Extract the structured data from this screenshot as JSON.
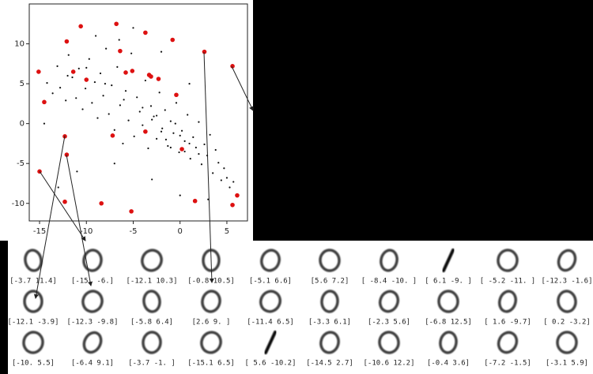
{
  "chart_data": {
    "type": "scatter",
    "xlim": [
      -16.1,
      7.2
    ],
    "ylim": [
      -12.2,
      15.0
    ],
    "xticks": [
      -15,
      -10,
      -5,
      0,
      5
    ],
    "yticks": [
      -10,
      -5,
      0,
      5,
      10
    ],
    "series": [
      {
        "color": "#111111",
        "x": [
          -14.2,
          -13.6,
          -13.1,
          -12.8,
          -12.2,
          -11.9,
          -11.5,
          -11.1,
          -10.8,
          -10.4,
          -10.1,
          -9.7,
          -9.4,
          -9.1,
          -8.8,
          -8.5,
          -8.2,
          -7.9,
          -7.6,
          -7.3,
          -7.0,
          -6.7,
          -6.4,
          -6.1,
          -5.8,
          -5.5,
          -5.2,
          -4.9,
          -4.6,
          -4.3,
          -4.0,
          -3.7,
          -3.4,
          -3.1,
          -2.8,
          -2.5,
          -2.2,
          -1.9,
          -1.6,
          -1.3,
          -1.0,
          -0.7,
          -0.4,
          -0.1,
          0.2,
          0.5,
          0.8,
          1.1,
          1.4,
          1.7,
          2.0,
          2.3,
          2.6,
          2.9,
          3.2,
          3.5,
          3.8,
          4.1,
          4.4,
          4.7,
          5.0,
          5.3,
          5.7,
          -2,
          -1.5,
          -0.5,
          0,
          -3,
          -1,
          1,
          -2.5,
          -4,
          0.5,
          2,
          -6,
          -8,
          -10,
          -12,
          -6.5,
          -9,
          -11,
          -13,
          -7,
          -3,
          0,
          3,
          -14.5,
          -5,
          -2,
          1
        ],
        "values": [
          5.1,
          3.8,
          7.2,
          4.5,
          2.9,
          8.6,
          5.8,
          3.2,
          6.9,
          1.8,
          4.4,
          8.1,
          2.6,
          5.2,
          0.7,
          6.3,
          3.5,
          9.4,
          1.2,
          4.8,
          -0.8,
          7.1,
          2.3,
          -2.5,
          4.1,
          0.4,
          8.8,
          -1.6,
          3.3,
          1.5,
          -0.2,
          5.4,
          -3.1,
          2.2,
          0.9,
          -1.9,
          3.9,
          -0.6,
          1.7,
          -2.8,
          0.3,
          -1.2,
          2.6,
          -3.6,
          -0.9,
          -2.2,
          1.1,
          -4.4,
          -1.7,
          -3.0,
          0.2,
          -5.1,
          -2.6,
          -4.0,
          -1.4,
          -6.2,
          -3.3,
          -4.9,
          -7.1,
          -5.6,
          -6.8,
          -8.0,
          -7.3,
          -1,
          -2,
          0,
          -1.5,
          0.5,
          -3,
          -2.5,
          1,
          2,
          -3.5,
          -3.8,
          3,
          5,
          7,
          6,
          10.5,
          11,
          -6,
          -8,
          -5,
          -7,
          -9,
          -9.5,
          0,
          12,
          9,
          5
        ]
      },
      {
        "color": "#dd1111",
        "x": [
          -3.7,
          -15,
          -12.1,
          -0.8,
          -5.1,
          5.6,
          -8.4,
          6.1,
          -5.2,
          -12.3,
          -12.1,
          -12.3,
          -5.8,
          2.6,
          -11.4,
          -3.3,
          -2.3,
          -6.8,
          1.6,
          0.2,
          -10,
          -6.4,
          -3.7,
          -15.1,
          5.6,
          -14.5,
          -10.6,
          -0.4,
          -7.2,
          -3.1
        ],
        "values": [
          11.4,
          -6,
          10.3,
          10.5,
          6.6,
          7.2,
          -10,
          -9,
          -11,
          -1.6,
          -3.9,
          -9.8,
          6.4,
          9,
          6.5,
          6.1,
          5.6,
          12.5,
          -9.7,
          -3.2,
          5.5,
          9.1,
          -1,
          6.5,
          -10.2,
          2.7,
          12.2,
          3.6,
          -1.5,
          5.9
        ]
      }
    ]
  },
  "samples": [
    "[-3.7 11.4]",
    "[-15.  -6.]",
    "[-12.1  10.3]",
    "[-0.8 10.5]",
    "[-5.1  6.6]",
    "[5.6 7.2]",
    "[ -8.4 -10. ]",
    "[ 6.1 -9. ]",
    "[ -5.2 -11. ]",
    "[-12.3  -1.6]",
    "[-12.1  -3.9]",
    "[-12.3  -9.8]",
    "[-5.8  6.4]",
    "[2.6 9. ]",
    "[-11.4   6.5]",
    "[-3.3  6.1]",
    "[-2.3  5.6]",
    "[-6.8 12.5]",
    "[ 1.6 -9.7]",
    "[ 0.2 -3.2]",
    "[-10.   5.5]",
    "[-6.4  9.1]",
    "[-3.7 -1. ]",
    "[-15.1   6.5]",
    "[  5.6 -10.2]",
    "[-14.5   2.7]",
    "[-10.6  12.2]",
    "[-0.4  3.6]",
    "[-7.2 -1.5]",
    "[-3.1  5.9]"
  ]
}
